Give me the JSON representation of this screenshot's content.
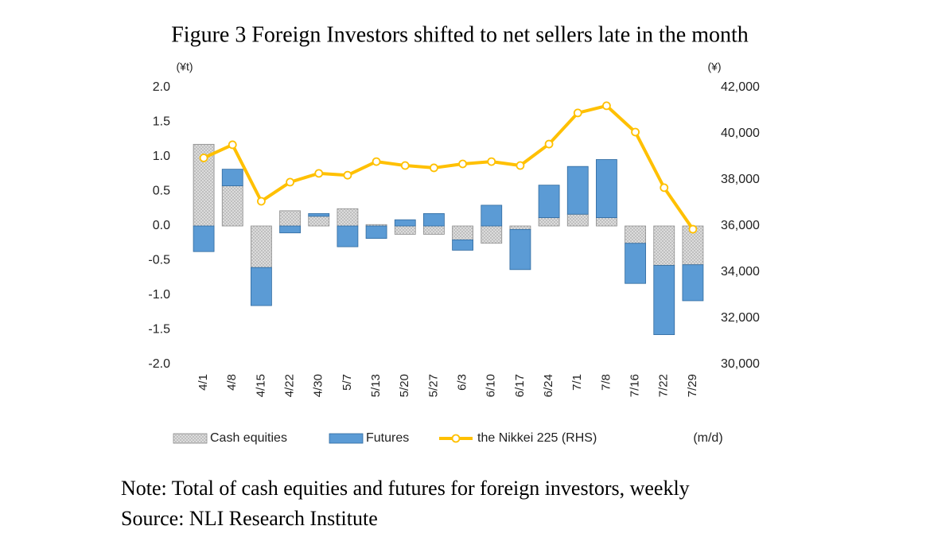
{
  "chart_data": {
    "type": "bar-line",
    "title": "Figure 3 Foreign Investors shifted to net sellers late in the month",
    "y_label": "(¥t)",
    "y2_label": "(¥)",
    "x_label": "(m/d)",
    "categories": [
      "4/1",
      "4/8",
      "4/15",
      "4/22",
      "4/30",
      "5/7",
      "5/13",
      "5/20",
      "5/27",
      "6/3",
      "6/10",
      "6/17",
      "6/24",
      "7/1",
      "7/8",
      "7/16",
      "7/22",
      "7/29"
    ],
    "series": [
      {
        "name": "Cash equities",
        "type": "bar",
        "color": "#a6a6a6",
        "values": [
          1.18,
          0.58,
          -0.6,
          0.22,
          0.14,
          0.25,
          0.02,
          -0.12,
          -0.12,
          -0.2,
          -0.25,
          -0.05,
          0.12,
          0.17,
          0.12,
          -0.25,
          -0.57,
          -0.56
        ]
      },
      {
        "name": "Futures",
        "type": "bar",
        "color": "#5b9bd5",
        "values": [
          -0.37,
          0.24,
          -0.55,
          -0.1,
          0.04,
          -0.3,
          -0.18,
          0.09,
          0.18,
          -0.15,
          0.3,
          -0.58,
          0.47,
          0.69,
          0.84,
          -0.58,
          -1.0,
          -0.52
        ]
      },
      {
        "name": "the Nikkei 225 (RHS)",
        "type": "line",
        "axis": "y2",
        "color": "#ffc000",
        "values": [
          38950,
          39520,
          37070,
          37900,
          38280,
          38200,
          38790,
          38620,
          38520,
          38690,
          38790,
          38620,
          39550,
          40900,
          41210,
          40070,
          37660,
          35860
        ]
      }
    ],
    "ylim": [
      -2,
      2
    ],
    "yticks": [
      {
        "value": -2,
        "label": "-2.0"
      },
      -1.5,
      {
        "value": -1,
        "label": "-1.0"
      },
      -0.5,
      {
        "value": 0,
        "label": "0.0"
      },
      0.5,
      {
        "value": 1,
        "label": "1.0"
      },
      1.5,
      {
        "value": 2,
        "label": "2.0"
      }
    ],
    "y2lim": [
      30000,
      42000
    ],
    "y2ticks": [
      {
        "value": 30000,
        "label": "30,000"
      },
      {
        "value": 32000,
        "label": "32,000"
      },
      {
        "value": 34000,
        "label": "34,000"
      },
      {
        "value": 36000,
        "label": "36,000"
      },
      {
        "value": 38000,
        "label": "38,000"
      },
      {
        "value": 40000,
        "label": "40,000"
      },
      {
        "value": 42000,
        "label": "42,000"
      }
    ],
    "grid": false,
    "legend": "bottom",
    "notes": [
      "Note: Total of cash equities and futures for foreign investors, weekly",
      "Source: NLI Research Institute"
    ]
  }
}
